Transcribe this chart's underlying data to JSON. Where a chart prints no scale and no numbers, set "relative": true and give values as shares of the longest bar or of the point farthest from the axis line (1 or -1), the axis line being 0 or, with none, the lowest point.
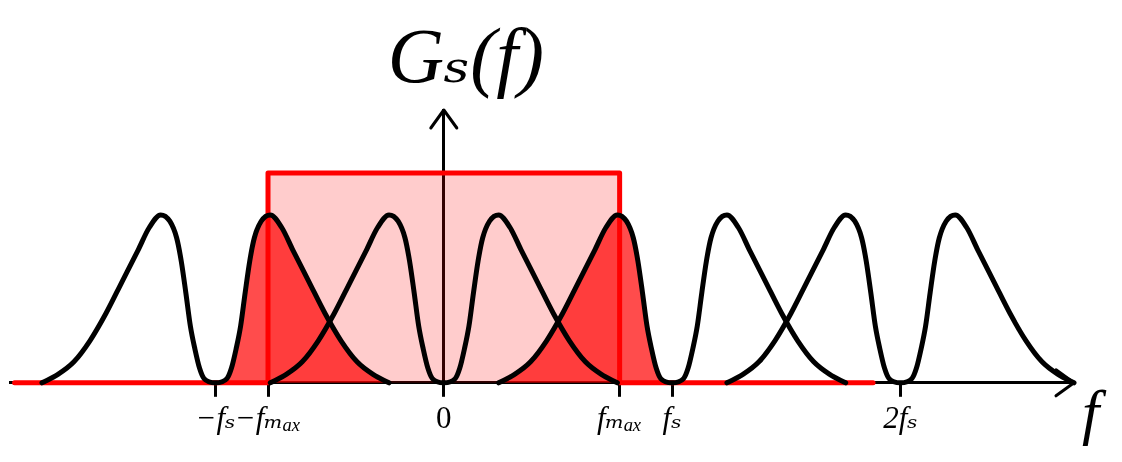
{
  "chart_data": {
    "type": "line",
    "xlabel": "f",
    "ylabel": "Gₛ(f)",
    "relative": true,
    "xlim": [
      -1.9,
      2.76
    ],
    "xticks": [
      {
        "value": -1,
        "label": "−fₛ"
      },
      {
        "value": -0.77,
        "label": "−fₘₐₓ"
      },
      0,
      {
        "value": 0.77,
        "label": "fₘₐₓ"
      },
      {
        "value": 1,
        "label": "fₛ"
      },
      {
        "value": 2,
        "label": "2fₛ"
      }
    ],
    "series": [
      {
        "color": "#ff0000",
        "x": [
          -1.88,
          -0.77,
          -0.77,
          0.77,
          0.77,
          1.88
        ],
        "values": [
          0,
          0,
          1,
          1,
          0,
          0
        ],
        "lower": [
          0,
          0,
          0,
          0,
          0,
          0
        ],
        "upper": [
          0,
          0,
          1,
          1,
          0,
          0
        ]
      },
      {
        "type": "area",
        "color": "#ff0000",
        "x": [
          -1,
          -0.95,
          -0.93,
          -0.91,
          -0.89,
          -0.87,
          -0.85,
          -0.83,
          -0.8,
          -0.76,
          -0.71,
          -0.66,
          -0.59,
          -0.52,
          -0.45,
          -0.38,
          -0.31,
          -0.24
        ],
        "values": [
          0,
          0.02,
          0.07,
          0.16,
          0.27,
          0.43,
          0.58,
          0.69,
          0.77,
          0.8,
          0.74,
          0.63,
          0.48,
          0.33,
          0.2,
          0.1,
          0.04,
          0
        ]
      },
      {
        "type": "area",
        "color": "#ff0000",
        "x": [
          0.24,
          0.31,
          0.38,
          0.45,
          0.52,
          0.59,
          0.66,
          0.71,
          0.76,
          0.8,
          0.83,
          0.85,
          0.87,
          0.89,
          0.91,
          0.93,
          0.95,
          1
        ],
        "values": [
          0,
          0.04,
          0.1,
          0.2,
          0.33,
          0.48,
          0.63,
          0.74,
          0.8,
          0.77,
          0.69,
          0.58,
          0.43,
          0.27,
          0.16,
          0.07,
          0.02,
          0
        ]
      },
      {
        "color": "#000000",
        "x": [
          -0.76,
          -0.69,
          -0.62,
          -0.55,
          -0.48,
          -0.41,
          -0.34,
          -0.29,
          -0.24,
          -0.2,
          -0.17,
          -0.15,
          -0.13,
          -0.11,
          -0.09,
          -0.07,
          -0.05,
          0,
          0.05,
          0.07,
          0.09,
          0.11,
          0.13,
          0.15,
          0.17,
          0.2,
          0.24,
          0.29,
          0.34,
          0.41,
          0.48,
          0.55,
          0.62,
          0.69,
          0.76
        ],
        "values": [
          0,
          0.04,
          0.1,
          0.2,
          0.33,
          0.48,
          0.63,
          0.74,
          0.8,
          0.77,
          0.69,
          0.58,
          0.43,
          0.27,
          0.16,
          0.07,
          0.02,
          0,
          0.02,
          0.07,
          0.16,
          0.27,
          0.43,
          0.58,
          0.69,
          0.77,
          0.8,
          0.74,
          0.63,
          0.48,
          0.33,
          0.2,
          0.1,
          0.04,
          0
        ]
      },
      {
        "color": "#000000",
        "x": [
          -1.76,
          -1.69,
          -1.62,
          -1.55,
          -1.48,
          -1.41,
          -1.34,
          -1.29,
          -1.24,
          -1.2,
          -1.17,
          -1.15,
          -1.13,
          -1.11,
          -1.09,
          -1.07,
          -1.05,
          -1,
          -0.95,
          -0.93,
          -0.91,
          -0.89,
          -0.87,
          -0.85,
          -0.83,
          -0.8,
          -0.76,
          -0.71,
          -0.66,
          -0.59,
          -0.52,
          -0.45,
          -0.38,
          -0.31,
          -0.24
        ],
        "values": [
          0,
          0.04,
          0.1,
          0.2,
          0.33,
          0.48,
          0.63,
          0.74,
          0.8,
          0.77,
          0.69,
          0.58,
          0.43,
          0.27,
          0.16,
          0.07,
          0.02,
          0,
          0.02,
          0.07,
          0.16,
          0.27,
          0.43,
          0.58,
          0.69,
          0.77,
          0.8,
          0.74,
          0.63,
          0.48,
          0.33,
          0.2,
          0.1,
          0.04,
          0
        ]
      },
      {
        "color": "#000000",
        "x": [
          0.24,
          0.31,
          0.38,
          0.45,
          0.52,
          0.59,
          0.66,
          0.71,
          0.76,
          0.8,
          0.83,
          0.85,
          0.87,
          0.89,
          0.91,
          0.93,
          0.95,
          1,
          1.05,
          1.07,
          1.09,
          1.11,
          1.13,
          1.15,
          1.17,
          1.2,
          1.24,
          1.29,
          1.34,
          1.41,
          1.48,
          1.55,
          1.62,
          1.69,
          1.76
        ],
        "values": [
          0,
          0.04,
          0.1,
          0.2,
          0.33,
          0.48,
          0.63,
          0.74,
          0.8,
          0.77,
          0.69,
          0.58,
          0.43,
          0.27,
          0.16,
          0.07,
          0.02,
          0,
          0.02,
          0.07,
          0.16,
          0.27,
          0.43,
          0.58,
          0.69,
          0.77,
          0.8,
          0.74,
          0.63,
          0.48,
          0.33,
          0.2,
          0.1,
          0.04,
          0
        ]
      },
      {
        "color": "#000000",
        "x": [
          1.24,
          1.31,
          1.38,
          1.45,
          1.52,
          1.59,
          1.66,
          1.71,
          1.76,
          1.8,
          1.83,
          1.85,
          1.87,
          1.89,
          1.91,
          1.93,
          1.95,
          2,
          2.05,
          2.07,
          2.09,
          2.11,
          2.13,
          2.15,
          2.17,
          2.2,
          2.24,
          2.29,
          2.34,
          2.41,
          2.48,
          2.55,
          2.62,
          2.69,
          2.76
        ],
        "values": [
          0,
          0.04,
          0.1,
          0.2,
          0.33,
          0.48,
          0.63,
          0.74,
          0.8,
          0.77,
          0.69,
          0.58,
          0.43,
          0.27,
          0.16,
          0.07,
          0.02,
          0,
          0.02,
          0.07,
          0.16,
          0.27,
          0.43,
          0.58,
          0.69,
          0.77,
          0.8,
          0.74,
          0.63,
          0.48,
          0.33,
          0.2,
          0.1,
          0.04,
          0
        ]
      }
    ]
  }
}
